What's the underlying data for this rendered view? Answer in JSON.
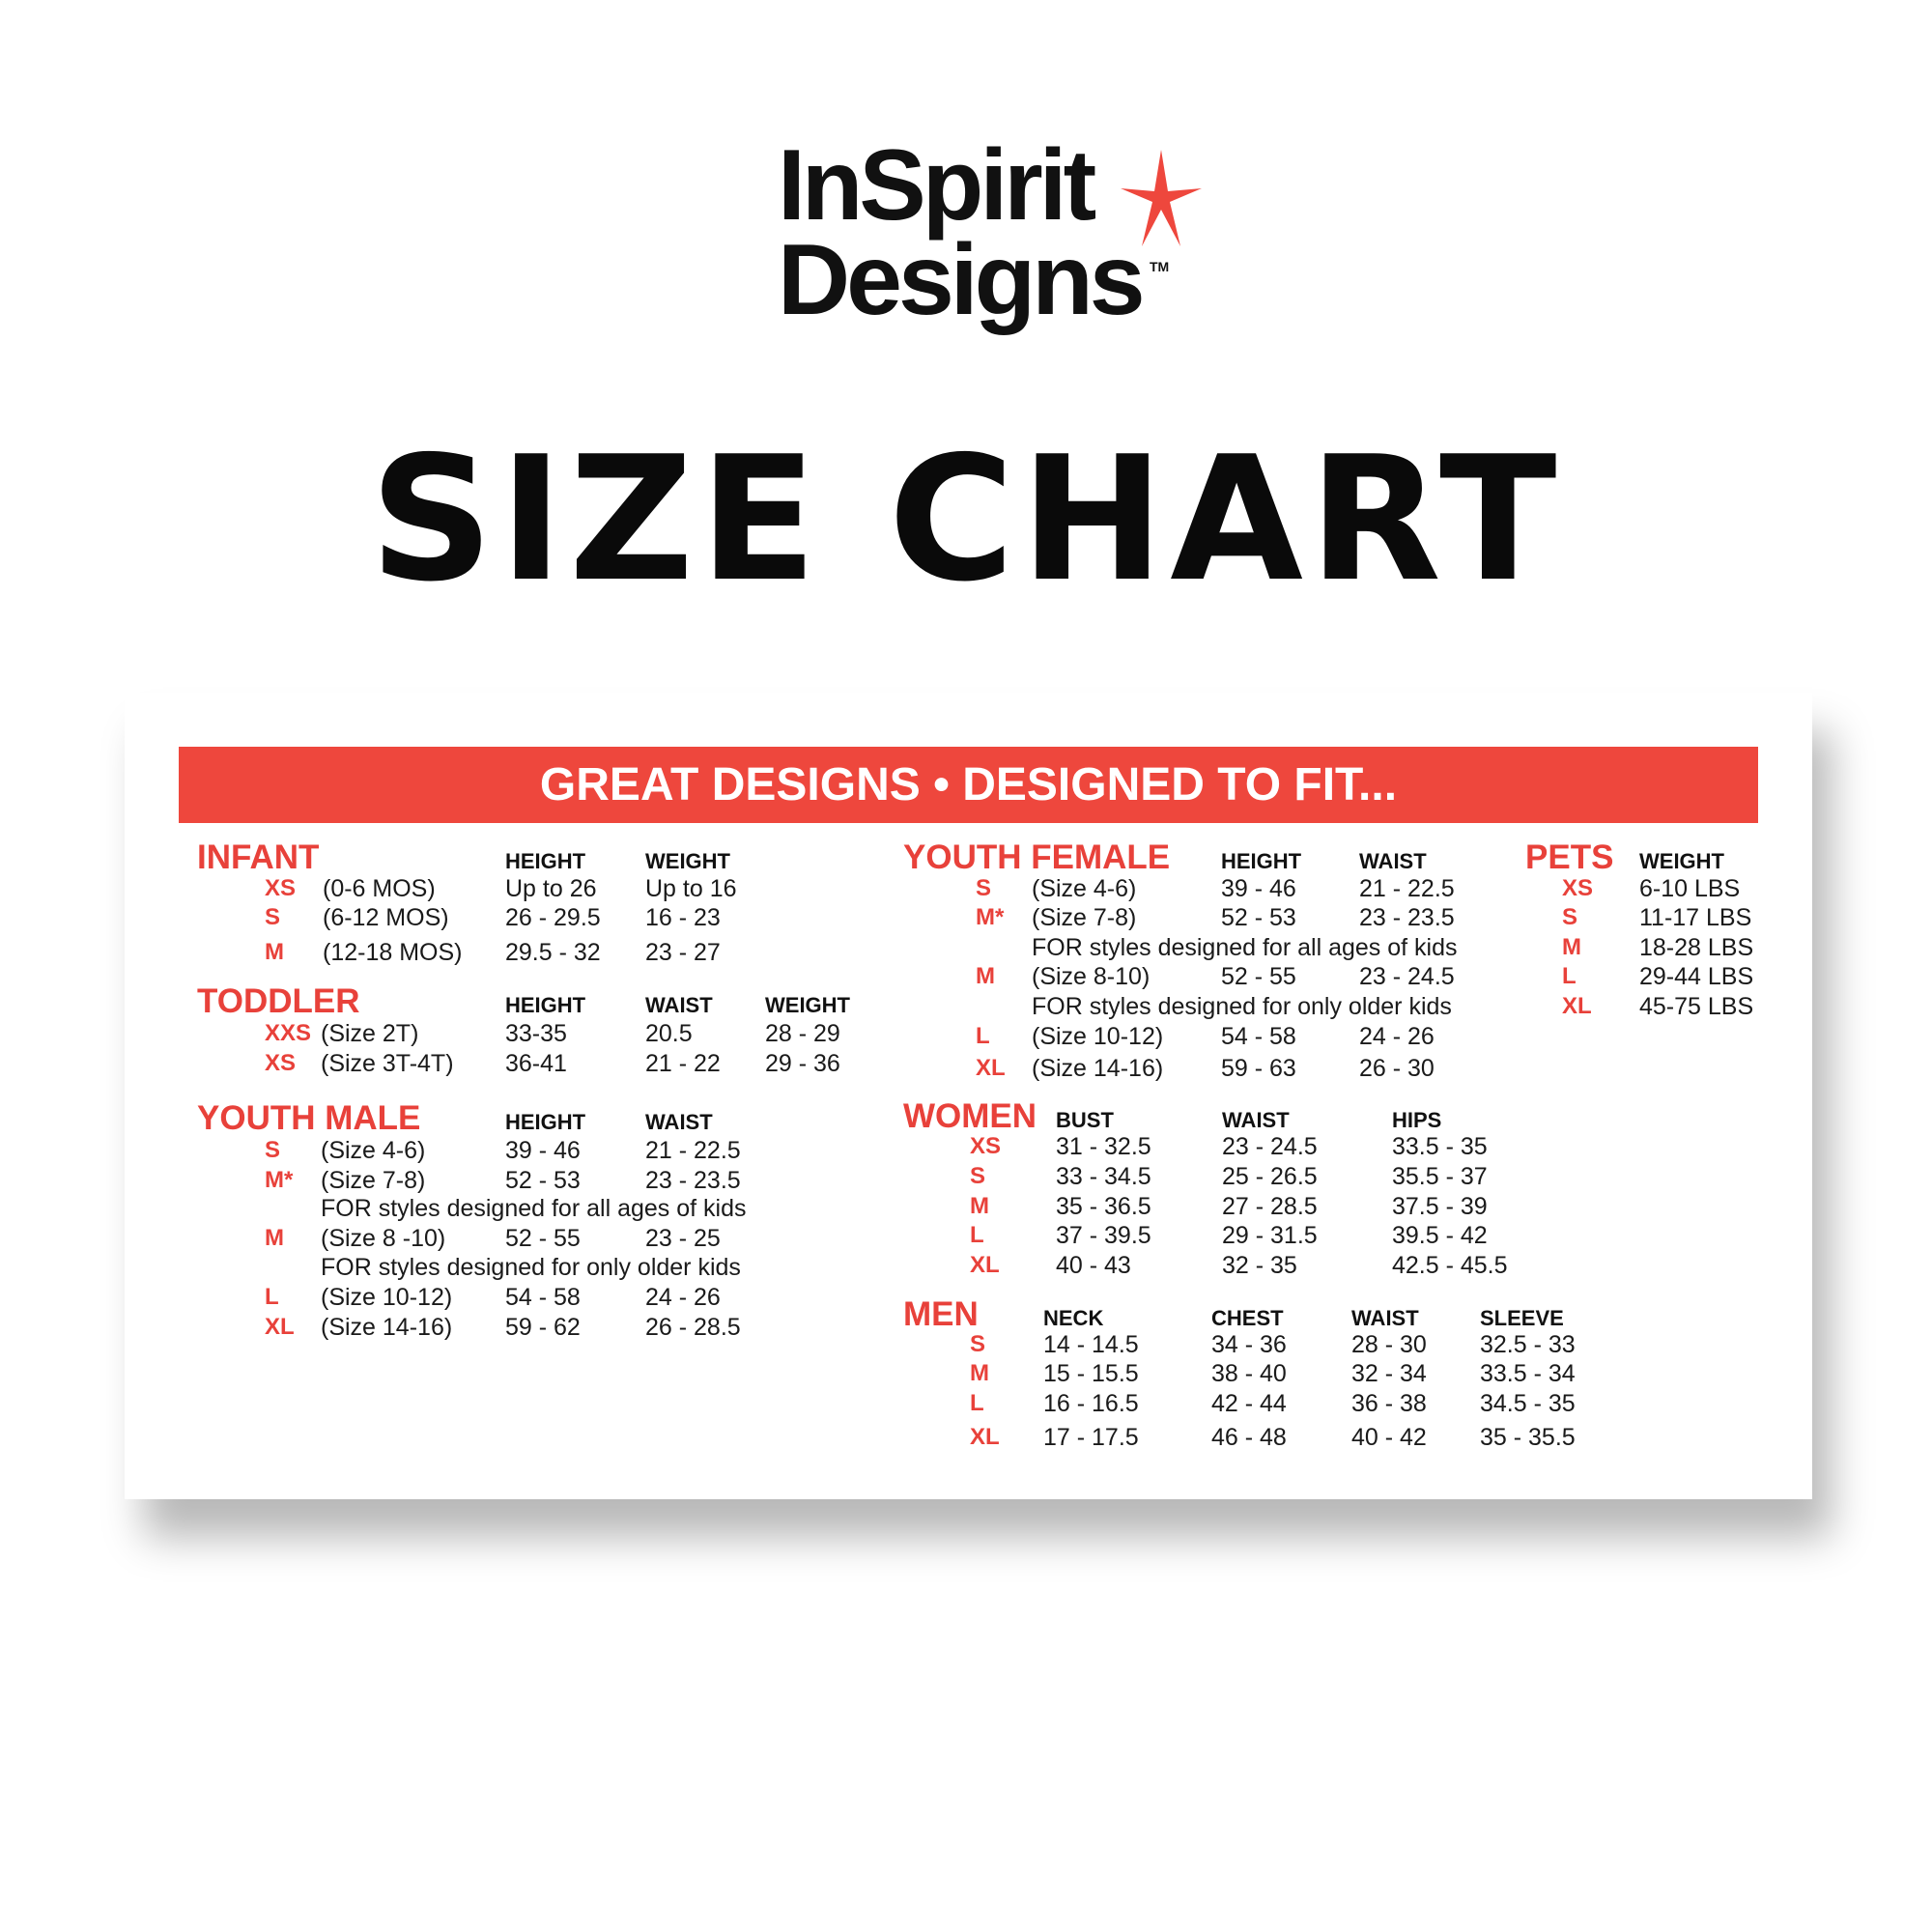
{
  "brand": {
    "line1": "InSpirit",
    "line2": "Designs",
    "tm": "TM",
    "star_color": "#ee473d"
  },
  "title": "SIZE CHART",
  "banner": "GREAT DESIGNS • DESIGNED TO FIT...",
  "colors": {
    "accent": "#ee473d",
    "text": "#1a1a1a"
  },
  "sections": {
    "infant": {
      "title": "INFANT",
      "headers": [
        "HEIGHT",
        "WEIGHT"
      ],
      "rows": [
        {
          "size": "XS",
          "desc": "(0-6 MOS)",
          "values": [
            "Up to 26",
            "Up to 16"
          ]
        },
        {
          "size": "S",
          "desc": "(6-12 MOS)",
          "values": [
            "26 - 29.5",
            "16 - 23"
          ]
        },
        {
          "size": "M",
          "desc": "(12-18 MOS)",
          "values": [
            "29.5 - 32",
            "23 - 27"
          ]
        }
      ]
    },
    "toddler": {
      "title": "TODDLER",
      "headers": [
        "HEIGHT",
        "WAIST",
        "WEIGHT"
      ],
      "rows": [
        {
          "size": "XXS",
          "desc": "(Size 2T)",
          "values": [
            "33-35",
            "20.5",
            "28 - 29"
          ]
        },
        {
          "size": "XS",
          "desc": "(Size 3T-4T)",
          "values": [
            "36-41",
            "21 - 22",
            "29 - 36"
          ]
        }
      ]
    },
    "youth_male": {
      "title": "YOUTH MALE",
      "headers": [
        "HEIGHT",
        "WAIST"
      ],
      "rows": [
        {
          "size": "S",
          "desc": "(Size 4-6)",
          "values": [
            "39 - 46",
            "21 - 22.5"
          ]
        },
        {
          "size": "M*",
          "desc": "(Size 7-8)",
          "values": [
            "52 - 53",
            "23 - 23.5"
          ]
        },
        {
          "size": "",
          "desc": "FOR styles designed for all ages of kids",
          "values": []
        },
        {
          "size": "M",
          "desc": "(Size 8 -10)",
          "values": [
            "52 - 55",
            "23 - 25"
          ]
        },
        {
          "size": "",
          "desc": "FOR styles designed for only older kids",
          "values": []
        },
        {
          "size": "L",
          "desc": "(Size 10-12)",
          "values": [
            "54 - 58",
            "24 - 26"
          ]
        },
        {
          "size": "XL",
          "desc": "(Size 14-16)",
          "values": [
            "59 - 62",
            "26 - 28.5"
          ]
        }
      ]
    },
    "youth_female": {
      "title": "YOUTH FEMALE",
      "headers": [
        "HEIGHT",
        "WAIST"
      ],
      "rows": [
        {
          "size": "S",
          "desc": "(Size 4-6)",
          "values": [
            "39 - 46",
            "21 - 22.5"
          ]
        },
        {
          "size": "M*",
          "desc": "(Size 7-8)",
          "values": [
            "52 - 53",
            "23 - 23.5"
          ]
        },
        {
          "size": "",
          "desc": "FOR styles designed for all ages of kids",
          "values": []
        },
        {
          "size": "M",
          "desc": "(Size 8-10)",
          "values": [
            "52 - 55",
            "23 - 24.5"
          ]
        },
        {
          "size": "",
          "desc": "FOR styles designed for only older kids",
          "values": []
        },
        {
          "size": "L",
          "desc": "(Size 10-12)",
          "values": [
            "54 - 58",
            "24 - 26"
          ]
        },
        {
          "size": "XL",
          "desc": "(Size 14-16)",
          "values": [
            "59 - 63",
            "26 - 30"
          ]
        }
      ]
    },
    "pets": {
      "title": "PETS",
      "headers": [
        "WEIGHT"
      ],
      "rows": [
        {
          "size": "XS",
          "desc": "",
          "values": [
            "6-10 LBS"
          ]
        },
        {
          "size": "S",
          "desc": "",
          "values": [
            "11-17 LBS"
          ]
        },
        {
          "size": "M",
          "desc": "",
          "values": [
            "18-28 LBS"
          ]
        },
        {
          "size": "L",
          "desc": "",
          "values": [
            "29-44 LBS"
          ]
        },
        {
          "size": "XL",
          "desc": "",
          "values": [
            "45-75 LBS"
          ]
        }
      ]
    },
    "women": {
      "title": "WOMEN",
      "headers": [
        "BUST",
        "WAIST",
        "HIPS"
      ],
      "rows": [
        {
          "size": "XS",
          "desc": "",
          "values": [
            "31 - 32.5",
            "23 - 24.5",
            "33.5 - 35"
          ]
        },
        {
          "size": "S",
          "desc": "",
          "values": [
            "33 - 34.5",
            "25 - 26.5",
            "35.5 - 37"
          ]
        },
        {
          "size": "M",
          "desc": "",
          "values": [
            "35 - 36.5",
            "27 - 28.5",
            "37.5 - 39"
          ]
        },
        {
          "size": "L",
          "desc": "",
          "values": [
            "37 - 39.5",
            "29 - 31.5",
            "39.5 - 42"
          ]
        },
        {
          "size": "XL",
          "desc": "",
          "values": [
            "40 - 43",
            "32 - 35",
            "42.5 - 45.5"
          ]
        }
      ]
    },
    "men": {
      "title": "MEN",
      "headers": [
        "NECK",
        "CHEST",
        "WAIST",
        "SLEEVE"
      ],
      "rows": [
        {
          "size": "S",
          "desc": "",
          "values": [
            "14 - 14.5",
            "34 - 36",
            "28 - 30",
            "32.5 - 33"
          ]
        },
        {
          "size": "M",
          "desc": "",
          "values": [
            "15 - 15.5",
            "38 - 40",
            "32 - 34",
            "33.5 - 34"
          ]
        },
        {
          "size": "L",
          "desc": "",
          "values": [
            "16 - 16.5",
            "42 - 44",
            "36 - 38",
            "34.5 - 35"
          ]
        },
        {
          "size": "XL",
          "desc": "",
          "values": [
            "17 - 17.5",
            "46 - 48",
            "40 - 42",
            "35 - 35.5"
          ]
        }
      ]
    }
  }
}
